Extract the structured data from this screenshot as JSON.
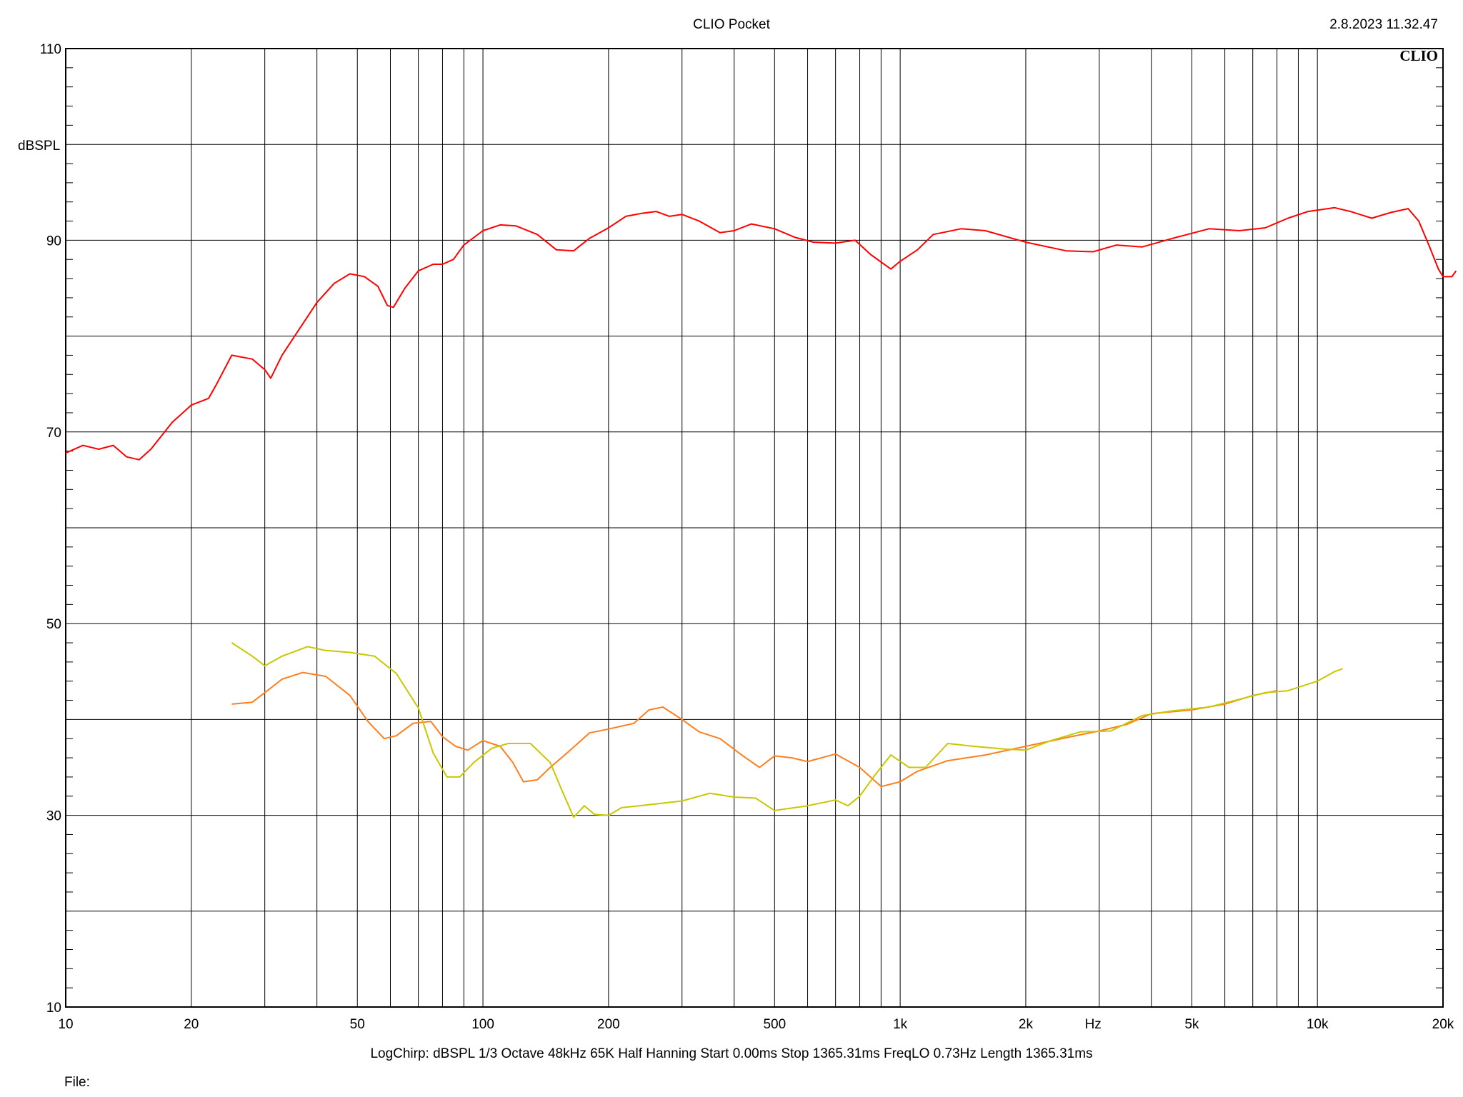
{
  "header": {
    "title": "CLIO Pocket",
    "datetime": "2.8.2023 11.32.47"
  },
  "footer": {
    "settings": "LogChirp:  dBSPL   1/3 Octave   48kHz   65K   Half Hanning   Start 0.00ms    Stop 1365.31ms    FreqLO 0.73Hz    Length 1365.31ms",
    "file_label": "File:"
  },
  "chart_data": {
    "type": "line",
    "title": "CLIO Pocket",
    "watermark": "CLIO",
    "xlabel": "Hz",
    "ylabel": "dBSPL",
    "x_scale": "log",
    "xlim": [
      10,
      20000
    ],
    "ylim": [
      10,
      110
    ],
    "grid": true,
    "x_tick_labels": [
      {
        "value": 10,
        "label": "10"
      },
      {
        "value": 20,
        "label": "20"
      },
      {
        "value": 50,
        "label": "50"
      },
      {
        "value": 100,
        "label": "100"
      },
      {
        "value": 200,
        "label": "200"
      },
      {
        "value": 500,
        "label": "500"
      },
      {
        "value": 1000,
        "label": "1k"
      },
      {
        "value": 2000,
        "label": "2k"
      },
      {
        "value": 5000,
        "label": "5k"
      },
      {
        "value": 10000,
        "label": "10k"
      },
      {
        "value": 20000,
        "label": "20k"
      }
    ],
    "y_tick_labels": [
      {
        "value": 10,
        "label": "10"
      },
      {
        "value": 30,
        "label": "30"
      },
      {
        "value": 50,
        "label": "50"
      },
      {
        "value": 70,
        "label": "70"
      },
      {
        "value": 90,
        "label": "90"
      },
      {
        "value": 110,
        "label": "110"
      }
    ],
    "series": [
      {
        "color": "#ff0000",
        "points": [
          [
            10,
            67.8
          ],
          [
            11,
            68.6
          ],
          [
            12,
            68.2
          ],
          [
            13,
            68.6
          ],
          [
            14,
            67.4
          ],
          [
            15,
            67.1
          ],
          [
            16,
            68.2
          ],
          [
            18,
            71.0
          ],
          [
            20,
            72.8
          ],
          [
            22,
            73.5
          ],
          [
            23,
            75.0
          ],
          [
            25,
            78.0
          ],
          [
            28,
            77.6
          ],
          [
            30,
            76.5
          ],
          [
            31,
            75.6
          ],
          [
            33,
            78.0
          ],
          [
            36,
            80.5
          ],
          [
            40,
            83.5
          ],
          [
            44,
            85.5
          ],
          [
            48,
            86.5
          ],
          [
            52,
            86.2
          ],
          [
            56,
            85.2
          ],
          [
            59,
            83.2
          ],
          [
            61,
            83.0
          ],
          [
            65,
            85.0
          ],
          [
            70,
            86.8
          ],
          [
            76,
            87.5
          ],
          [
            80,
            87.5
          ],
          [
            85,
            88.0
          ],
          [
            90,
            89.5
          ],
          [
            100,
            91.0
          ],
          [
            110,
            91.6
          ],
          [
            120,
            91.5
          ],
          [
            135,
            90.6
          ],
          [
            150,
            89.0
          ],
          [
            165,
            88.9
          ],
          [
            180,
            90.2
          ],
          [
            200,
            91.3
          ],
          [
            220,
            92.5
          ],
          [
            240,
            92.8
          ],
          [
            260,
            93.0
          ],
          [
            280,
            92.5
          ],
          [
            300,
            92.7
          ],
          [
            330,
            92.0
          ],
          [
            370,
            90.8
          ],
          [
            400,
            91.0
          ],
          [
            440,
            91.7
          ],
          [
            500,
            91.2
          ],
          [
            560,
            90.3
          ],
          [
            620,
            89.8
          ],
          [
            700,
            89.7
          ],
          [
            780,
            90.0
          ],
          [
            850,
            88.5
          ],
          [
            950,
            87.0
          ],
          [
            1000,
            87.8
          ],
          [
            1100,
            89.0
          ],
          [
            1200,
            90.6
          ],
          [
            1400,
            91.2
          ],
          [
            1600,
            91.0
          ],
          [
            2000,
            89.8
          ],
          [
            2500,
            88.9
          ],
          [
            2900,
            88.8
          ],
          [
            3300,
            89.5
          ],
          [
            3800,
            89.3
          ],
          [
            4500,
            90.2
          ],
          [
            5500,
            91.2
          ],
          [
            6500,
            91.0
          ],
          [
            7500,
            91.3
          ],
          [
            8500,
            92.3
          ],
          [
            9500,
            93.0
          ],
          [
            11000,
            93.4
          ],
          [
            12000,
            93.0
          ],
          [
            13500,
            92.3
          ],
          [
            15000,
            92.9
          ],
          [
            16500,
            93.3
          ],
          [
            17500,
            92.0
          ],
          [
            18500,
            89.5
          ],
          [
            19500,
            87.0
          ],
          [
            20000,
            86.2
          ],
          [
            21000,
            86.2
          ],
          [
            21500,
            86.8
          ]
        ]
      },
      {
        "color": "#ff7f1e",
        "points": [
          [
            25,
            41.6
          ],
          [
            28,
            41.8
          ],
          [
            30,
            42.8
          ],
          [
            33,
            44.2
          ],
          [
            37,
            44.9
          ],
          [
            42,
            44.5
          ],
          [
            48,
            42.5
          ],
          [
            53,
            39.8
          ],
          [
            58,
            38.0
          ],
          [
            62,
            38.3
          ],
          [
            68,
            39.6
          ],
          [
            75,
            39.8
          ],
          [
            80,
            38.2
          ],
          [
            86,
            37.2
          ],
          [
            92,
            36.8
          ],
          [
            100,
            37.8
          ],
          [
            110,
            37.2
          ],
          [
            118,
            35.5
          ],
          [
            125,
            33.5
          ],
          [
            135,
            33.7
          ],
          [
            145,
            35.0
          ],
          [
            160,
            36.6
          ],
          [
            180,
            38.6
          ],
          [
            200,
            39.0
          ],
          [
            230,
            39.6
          ],
          [
            250,
            41.0
          ],
          [
            270,
            41.3
          ],
          [
            300,
            40.0
          ],
          [
            330,
            38.7
          ],
          [
            370,
            38.0
          ],
          [
            420,
            36.2
          ],
          [
            460,
            35.0
          ],
          [
            500,
            36.2
          ],
          [
            550,
            36.0
          ],
          [
            600,
            35.6
          ],
          [
            700,
            36.4
          ],
          [
            800,
            35.0
          ],
          [
            900,
            33.0
          ],
          [
            1000,
            33.5
          ],
          [
            1100,
            34.6
          ],
          [
            1300,
            35.7
          ],
          [
            1600,
            36.3
          ],
          [
            2000,
            37.2
          ],
          [
            2500,
            38.1
          ],
          [
            3000,
            38.8
          ],
          [
            3500,
            39.5
          ],
          [
            4000,
            40.6
          ],
          [
            5000,
            41.0
          ],
          [
            6000,
            41.6
          ],
          [
            7000,
            42.5
          ],
          [
            8000,
            43.0
          ]
        ]
      },
      {
        "color": "#c8c800",
        "points": [
          [
            25,
            48.0
          ],
          [
            28,
            46.6
          ],
          [
            30,
            45.6
          ],
          [
            33,
            46.6
          ],
          [
            38,
            47.6
          ],
          [
            42,
            47.2
          ],
          [
            48,
            47.0
          ],
          [
            55,
            46.6
          ],
          [
            62,
            44.8
          ],
          [
            70,
            41.2
          ],
          [
            76,
            36.5
          ],
          [
            82,
            34.0
          ],
          [
            88,
            34.0
          ],
          [
            95,
            35.5
          ],
          [
            105,
            37.0
          ],
          [
            115,
            37.5
          ],
          [
            130,
            37.5
          ],
          [
            145,
            35.5
          ],
          [
            155,
            32.5
          ],
          [
            165,
            29.8
          ],
          [
            175,
            31.0
          ],
          [
            185,
            30.1
          ],
          [
            200,
            30.0
          ],
          [
            215,
            30.8
          ],
          [
            250,
            31.1
          ],
          [
            300,
            31.5
          ],
          [
            350,
            32.3
          ],
          [
            400,
            31.9
          ],
          [
            450,
            31.8
          ],
          [
            500,
            30.5
          ],
          [
            600,
            31.0
          ],
          [
            700,
            31.6
          ],
          [
            750,
            31.0
          ],
          [
            800,
            32.0
          ],
          [
            870,
            34.2
          ],
          [
            950,
            36.3
          ],
          [
            1050,
            35.0
          ],
          [
            1150,
            35.0
          ],
          [
            1300,
            37.5
          ],
          [
            1500,
            37.2
          ],
          [
            1800,
            36.9
          ],
          [
            2000,
            36.8
          ],
          [
            2300,
            37.8
          ],
          [
            2700,
            38.7
          ],
          [
            3200,
            38.8
          ],
          [
            3800,
            40.4
          ],
          [
            4500,
            40.9
          ],
          [
            5500,
            41.3
          ],
          [
            6500,
            42.1
          ],
          [
            7500,
            42.8
          ],
          [
            8500,
            43.0
          ],
          [
            10000,
            44.0
          ],
          [
            11000,
            45.0
          ],
          [
            11500,
            45.3
          ]
        ]
      }
    ]
  }
}
